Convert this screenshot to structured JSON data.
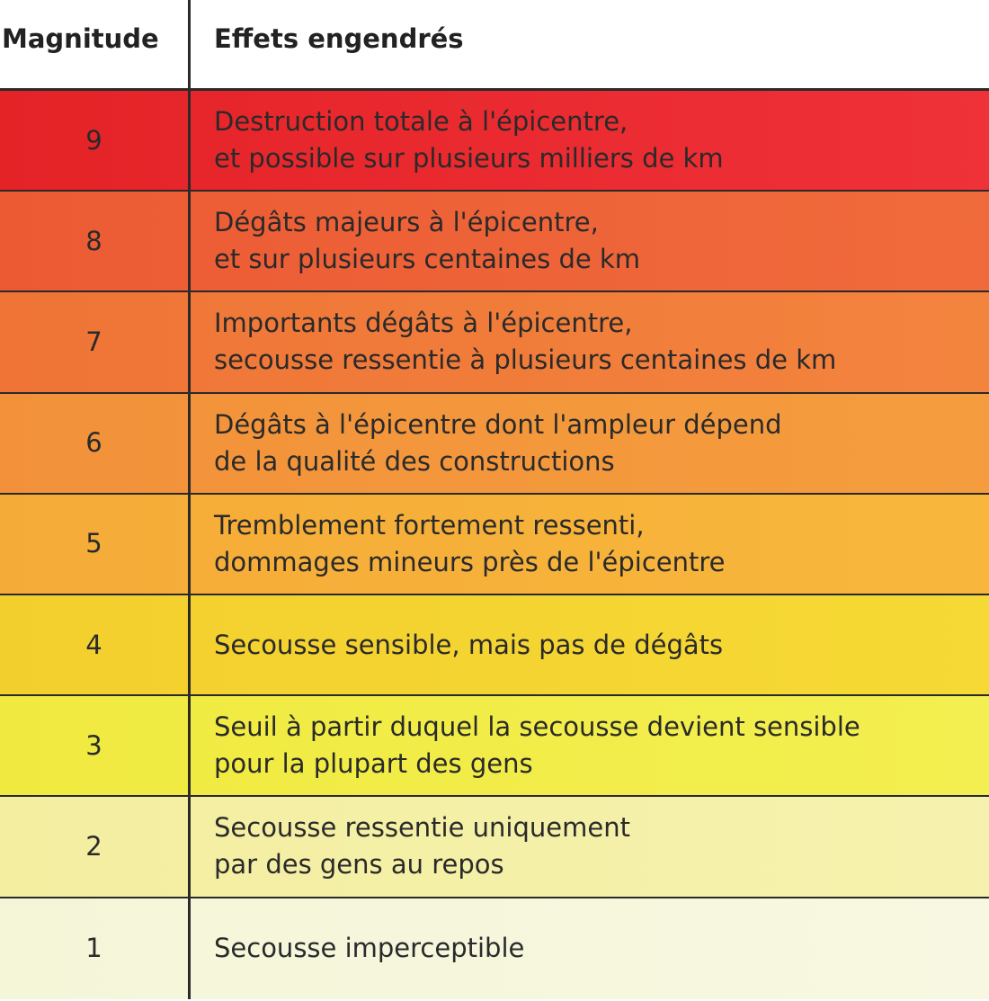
{
  "table": {
    "header": [
      "Magnitude",
      "Effets engendrés"
    ],
    "rows": [
      {
        "magnitude": 9,
        "effects": [
          "Destruction totale à l'épicentre,",
          "et possible sur plusieurs milliers de km"
        ]
      },
      {
        "magnitude": 8,
        "effects": [
          "Dégâts majeurs à l'épicentre,",
          "et sur plusieurs centaines de km"
        ]
      },
      {
        "magnitude": 7,
        "effects": [
          "Importants dégâts à l'épicentre,",
          "secousse ressentie à plusieurs centaines de km"
        ]
      },
      {
        "magnitude": 6,
        "effects": [
          "Dégâts à l'épicentre dont l'ampleur dépend",
          "de la qualité des constructions"
        ]
      },
      {
        "magnitude": 5,
        "effects": [
          "Tremblement fortement ressenti,",
          "dommages mineurs près de l'épicentre"
        ]
      },
      {
        "magnitude": 4,
        "effects": [
          "Secousse sensible, mais pas de dégâts"
        ]
      },
      {
        "magnitude": 3,
        "effects": [
          "Seuil à partir duquel la secousse devient sensible",
          "pour la plupart des gens"
        ]
      },
      {
        "magnitude": 2,
        "effects": [
          "Secousse ressentie uniquement",
          "par des gens au repos"
        ]
      },
      {
        "magnitude": 1,
        "effects": [
          "Secousse imperceptible"
        ]
      }
    ]
  }
}
